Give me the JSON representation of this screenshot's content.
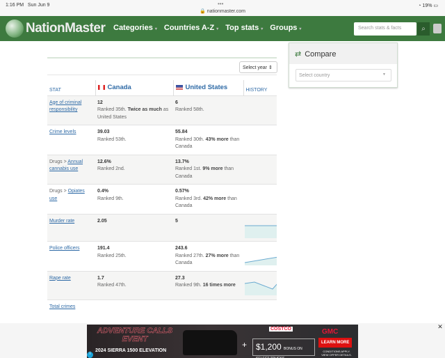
{
  "status": {
    "time": "1:16 PM",
    "date": "Sun Jun 9",
    "url": "nationmaster.com",
    "battery": "19%"
  },
  "header": {
    "logo": "NationMaster",
    "nav": [
      "Categories",
      "Countries A-Z",
      "Top stats",
      "Groups"
    ],
    "search_placeholder": "Search stats & facts"
  },
  "compare": {
    "title": "Compare",
    "select_placeholder": "Select country"
  },
  "select_year": "Select year",
  "table": {
    "headers": {
      "stat": "STAT",
      "c1": "Canada",
      "c2": "United States",
      "history": "HISTORY"
    },
    "rows": [
      {
        "prefix": "",
        "stat": "Age of criminal responsibility",
        "c1v": "12",
        "c1r": "Ranked 35th.",
        "c1b": "Twice as much",
        "c1t": "as United States",
        "c2v": "6",
        "c2r": "Ranked 58th.",
        "c2b": "",
        "c2t": ""
      },
      {
        "prefix": "",
        "stat": "Crime levels",
        "c1v": "39.03",
        "c1r": "Ranked 53th.",
        "c1b": "",
        "c1t": "",
        "c2v": "55.84",
        "c2r": "Ranked 30th.",
        "c2b": "43% more",
        "c2t": "than Canada"
      },
      {
        "prefix": "Drugs > ",
        "stat": "Annual cannabis use",
        "c1v": "12.6%",
        "c1r": "Ranked 2nd.",
        "c1b": "",
        "c1t": "",
        "c2v": "13.7%",
        "c2r": "Ranked 1st.",
        "c2b": "9% more",
        "c2t": "than Canada"
      },
      {
        "prefix": "Drugs > ",
        "stat": "Opiates use",
        "c1v": "0.4%",
        "c1r": "Ranked 9th.",
        "c1b": "",
        "c1t": "",
        "c2v": "0.57%",
        "c2r": "Ranked 3rd.",
        "c2b": "42% more",
        "c2t": "than Canada"
      },
      {
        "prefix": "",
        "stat": "Murder rate",
        "c1v": "2.05",
        "c1r": "",
        "c1b": "",
        "c1t": "",
        "c2v": "5",
        "c2r": "",
        "c2b": "",
        "c2t": ""
      },
      {
        "prefix": "",
        "stat": "Police officers",
        "c1v": "191.4",
        "c1r": "Ranked 25th.",
        "c1b": "",
        "c1t": "",
        "c2v": "243.6",
        "c2r": "Ranked 27th.",
        "c2b": "27% more",
        "c2t": "than Canada"
      },
      {
        "prefix": "",
        "stat": "Rape rate",
        "c1v": "1.7",
        "c1r": "Ranked 47th.",
        "c1b": "",
        "c1t": "",
        "c2v": "27.3",
        "c2r": "Ranked 9th.",
        "c2b": "16 times more",
        "c2t": ""
      },
      {
        "prefix": "",
        "stat": "Total crimes",
        "c1v": "",
        "c1r": "",
        "c1b": "",
        "c1t": "",
        "c2v": "",
        "c2r": "",
        "c2b": "",
        "c2t": ""
      }
    ]
  },
  "ad": {
    "headline": "ADVENTURE CALLS EVENT",
    "model": "2024 SIERRA 1500 ELEVATION",
    "partner": "COSTCO",
    "offer": "$1,200",
    "offer_sub": "BONUS ON SELECT TRUCKS",
    "brand": "GMC",
    "cta": "LEARN MORE",
    "conditions": "CONDITIONS APPLY. VIEW OFFER DETAILS."
  },
  "colors": {
    "header": "#3d7a3f",
    "link": "#2e6aa6"
  }
}
